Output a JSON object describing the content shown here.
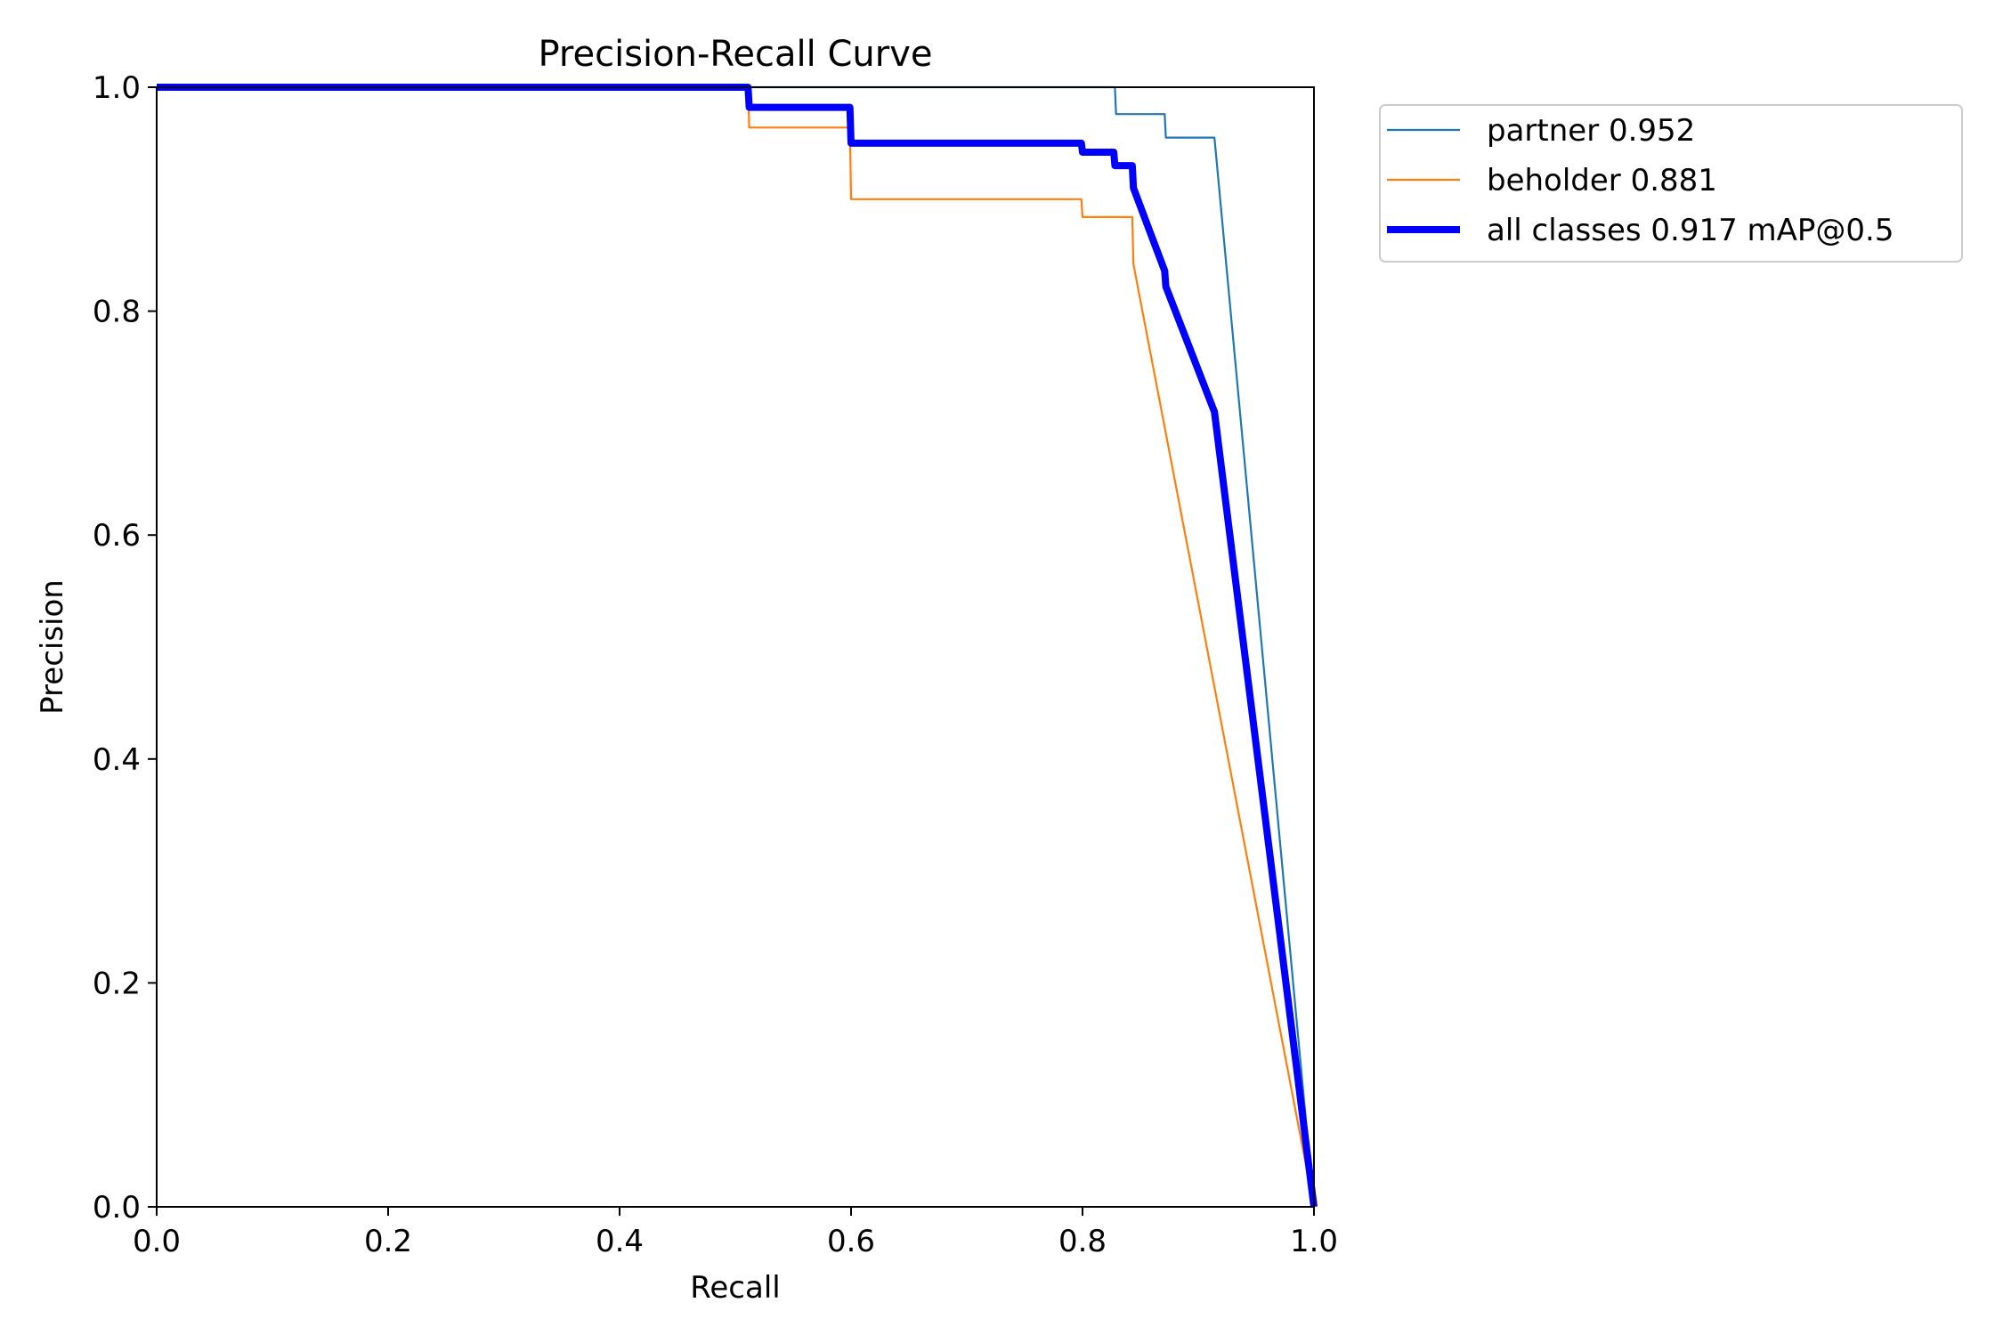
{
  "chart_data": {
    "type": "line",
    "title": "Precision-Recall Curve",
    "xlabel": "Recall",
    "ylabel": "Precision",
    "xlim": [
      0,
      1
    ],
    "ylim": [
      0,
      1
    ],
    "xticks": [
      "0.0",
      "0.2",
      "0.4",
      "0.6",
      "0.8",
      "1.0"
    ],
    "yticks": [
      "0.0",
      "0.2",
      "0.4",
      "0.6",
      "0.8",
      "1.0"
    ],
    "grid": false,
    "legend_position": "outside-top-right",
    "series": [
      {
        "name": "partner 0.952",
        "color": "#1f77b4",
        "points": [
          [
            0,
            1.0
          ],
          [
            0.828,
            1.0
          ],
          [
            0.829,
            0.976
          ],
          [
            0.871,
            0.976
          ],
          [
            0.872,
            0.955
          ],
          [
            0.914,
            0.955
          ],
          [
            1.0,
            0.0
          ]
        ]
      },
      {
        "name": "beholder 0.881",
        "color": "#ff7f0e",
        "points": [
          [
            0,
            1.0
          ],
          [
            0.511,
            1.0
          ],
          [
            0.512,
            0.964
          ],
          [
            0.599,
            0.964
          ],
          [
            0.6,
            0.9
          ],
          [
            0.799,
            0.9
          ],
          [
            0.8,
            0.884
          ],
          [
            0.843,
            0.884
          ],
          [
            0.844,
            0.842
          ],
          [
            1.0,
            0.0
          ]
        ]
      },
      {
        "name": "all classes 0.917 mAP@0.5",
        "color": "#0000ff",
        "bold": true,
        "points": [
          [
            0,
            1.0
          ],
          [
            0.511,
            1.0
          ],
          [
            0.512,
            0.982
          ],
          [
            0.599,
            0.982
          ],
          [
            0.6,
            0.95
          ],
          [
            0.799,
            0.95
          ],
          [
            0.8,
            0.942
          ],
          [
            0.827,
            0.942
          ],
          [
            0.828,
            0.93
          ],
          [
            0.843,
            0.93
          ],
          [
            0.844,
            0.91
          ],
          [
            0.871,
            0.836
          ],
          [
            0.872,
            0.822
          ],
          [
            0.914,
            0.71
          ],
          [
            1.0,
            0.0
          ]
        ]
      }
    ]
  }
}
